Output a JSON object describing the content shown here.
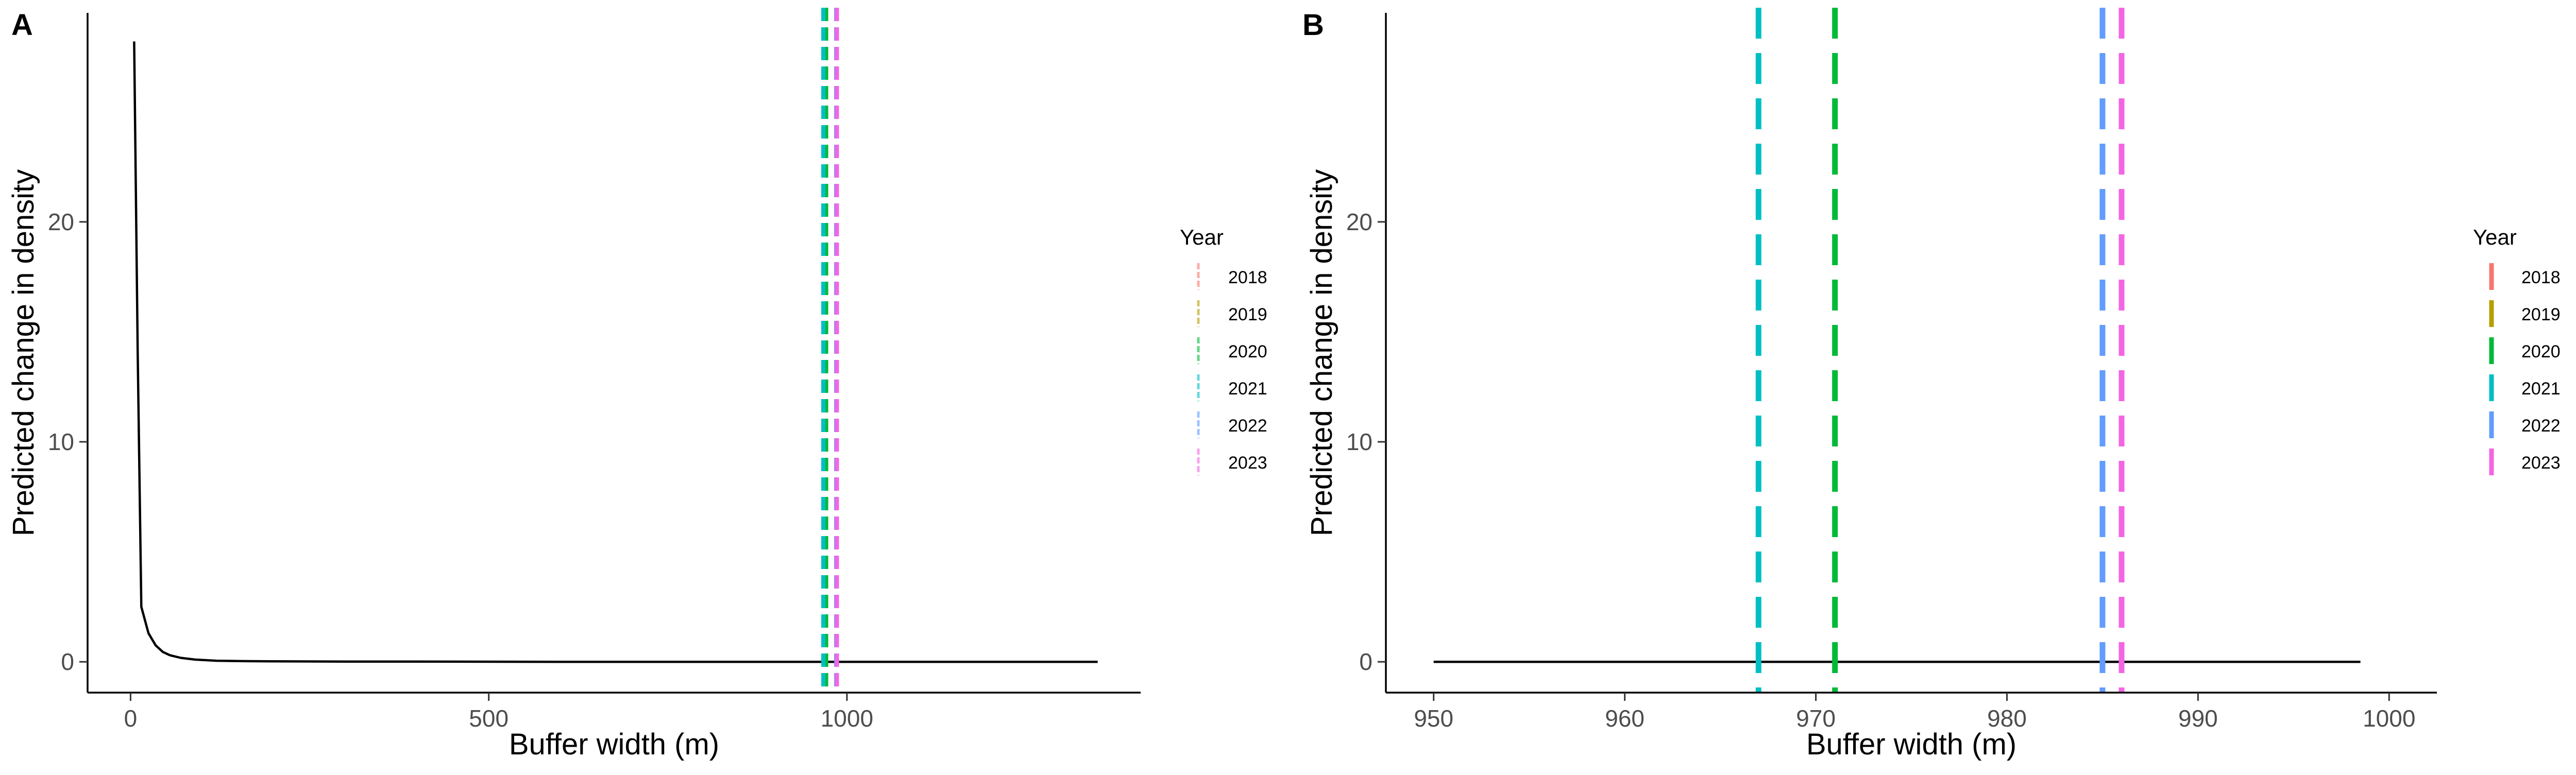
{
  "colors": {
    "2018": "#F8766D",
    "2019": "#B79F00",
    "2020": "#00BA38",
    "2021": "#00BFC4",
    "2022": "#619CFF",
    "2023": "#F564E3",
    "curve": "#000000"
  },
  "chart_data": [
    {
      "panel": "A",
      "type": "line",
      "xlabel": "Buffer width (m)",
      "ylabel": "Predicted change in density",
      "xlim": [
        -60,
        1410
      ],
      "ylim": [
        -1.4,
        29.5
      ],
      "xticks": [
        0,
        500,
        1000
      ],
      "yticks": [
        0,
        10,
        20
      ],
      "legend_title": "Year",
      "legend_position": "right",
      "legend_entries": [
        "2018",
        "2019",
        "2020",
        "2021",
        "2022",
        "2023"
      ],
      "legend_alpha": 0.6,
      "legend_linewidth": "thin",
      "series": [
        {
          "style": "solid",
          "color": "#000000",
          "x": [
            5,
            10,
            15,
            25,
            35,
            45,
            55,
            70,
            90,
            120,
            160,
            200,
            300,
            400,
            600,
            800,
            1000,
            1200,
            1350
          ],
          "y": [
            28.2,
            14.0,
            2.5,
            1.3,
            0.75,
            0.45,
            0.3,
            0.18,
            0.1,
            0.05,
            0.03,
            0.02,
            0.01,
            0.01,
            0.0,
            0.0,
            0.0,
            0.0,
            0.0
          ]
        }
      ],
      "vlines": [
        {
          "year": "2020",
          "x": 971,
          "color": "#00BA38",
          "style": "dashed"
        },
        {
          "year": "2021",
          "x": 967,
          "color": "#00BFC4",
          "style": "dashed"
        },
        {
          "year": "2022",
          "x": 985,
          "color": "#619CFF",
          "style": "dashed"
        },
        {
          "year": "2023",
          "x": 986,
          "color": "#F564E3",
          "style": "dashed"
        }
      ]
    },
    {
      "panel": "B",
      "type": "line",
      "xlabel": "Buffer width (m)",
      "ylabel": "Predicted change in density",
      "xlim": [
        947.5,
        1002.5
      ],
      "ylim": [
        -1.4,
        29.5
      ],
      "xticks": [
        950,
        960,
        970,
        980,
        990,
        1000
      ],
      "yticks": [
        0,
        10,
        20
      ],
      "legend_title": "Year",
      "legend_position": "right",
      "legend_entries": [
        "2018",
        "2019",
        "2020",
        "2021",
        "2022",
        "2023"
      ],
      "legend_alpha": 1,
      "legend_linewidth": "thick",
      "series": [
        {
          "style": "solid",
          "color": "#000000",
          "x": [
            950,
            998.5
          ],
          "y": [
            0,
            0
          ]
        }
      ],
      "vlines": [
        {
          "year": "2021",
          "x": 967,
          "color": "#00BFC4",
          "style": "dashed"
        },
        {
          "year": "2020",
          "x": 971,
          "color": "#00BA38",
          "style": "dashed"
        },
        {
          "year": "2022",
          "x": 985,
          "color": "#619CFF",
          "style": "dashed"
        },
        {
          "year": "2023",
          "x": 986,
          "color": "#F564E3",
          "style": "dashed"
        }
      ]
    }
  ]
}
